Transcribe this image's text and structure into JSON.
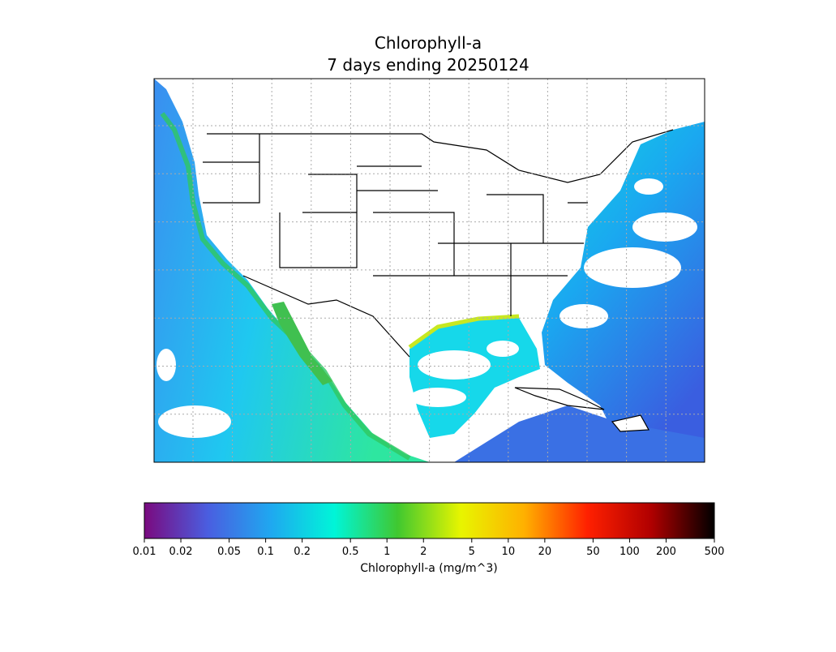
{
  "map": {
    "title": "Chlorophyll-a",
    "subtitle": "7 days ending 20250124"
  },
  "colorbar": {
    "label": "Chlorophyll-a (mg/m^3)",
    "scale": "log",
    "lim": [
      0.01,
      500
    ],
    "ticks": [
      0.01,
      0.02,
      0.05,
      0.1,
      0.2,
      0.5,
      1,
      2,
      5,
      10,
      20,
      50,
      100,
      200,
      500
    ],
    "colors": [
      "#7a0a7f",
      "#4a5ee0",
      "#1fa8f0",
      "#00f5d8",
      "#40c830",
      "#e8f500",
      "#ffb000",
      "#ff2000",
      "#b00000",
      "#000000"
    ]
  }
}
